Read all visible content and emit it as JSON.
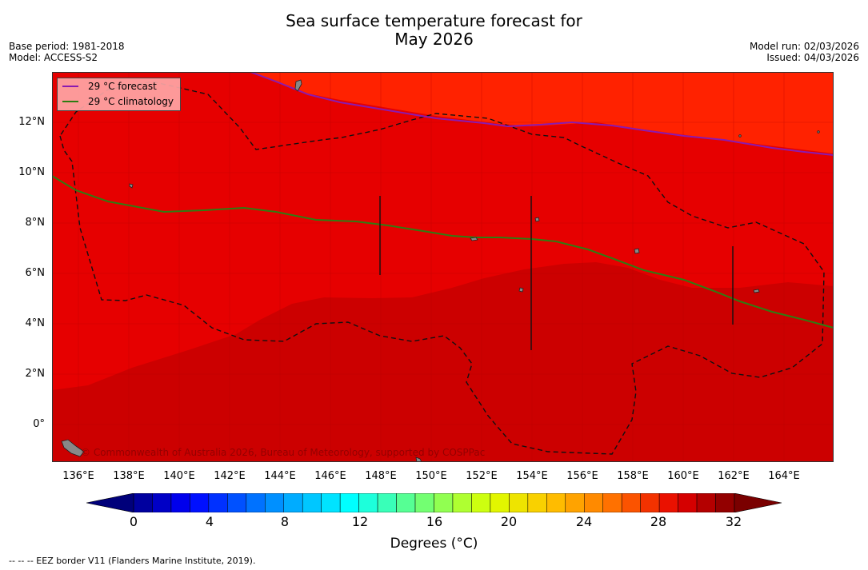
{
  "title": {
    "line1": "Sea surface temperature forecast for",
    "line2": "May 2026"
  },
  "meta_left": {
    "base_period": "Base period: 1981-2018",
    "model": "Model: ACCESS-S2"
  },
  "meta_right": {
    "model_run": "Model run: 02/03/2026",
    "issued": "Issued: 04/03/2026"
  },
  "legend": [
    {
      "label": "29 °C  forecast",
      "color": "#8b1ab0"
    },
    {
      "label": "29 °C  climatology",
      "color": "#2e7d12"
    }
  ],
  "lat_labels": [
    "12°N",
    "10°N",
    "8°N",
    "6°N",
    "4°N",
    "2°N",
    "0°"
  ],
  "lon_labels": [
    "136°E",
    "138°E",
    "140°E",
    "142°E",
    "144°E",
    "146°E",
    "148°E",
    "150°E",
    "152°E",
    "154°E",
    "156°E",
    "158°E",
    "160°E",
    "162°E",
    "164°E"
  ],
  "credit": "© Commonwealth of Australia 2026, Bureau of Meteorology, supported by COSPPac",
  "colorbar": {
    "ticks": [
      "0",
      "4",
      "8",
      "12",
      "16",
      "20",
      "24",
      "28",
      "32"
    ],
    "label": "Degrees (°C)"
  },
  "footer": "-- -- -- EEZ border V11 (Flanders Marine Institute, 2019).",
  "colors": {
    "sst_29_30": "#e60000",
    "sst_30_31": "#cc0000",
    "sst_28_29": "#ff2200"
  }
}
